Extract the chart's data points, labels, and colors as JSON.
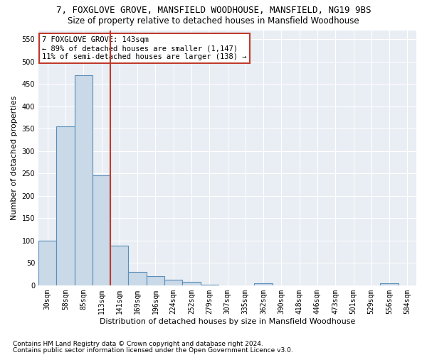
{
  "title1": "7, FOXGLOVE GROVE, MANSFIELD WOODHOUSE, MANSFIELD, NG19 9BS",
  "title2": "Size of property relative to detached houses in Mansfield Woodhouse",
  "xlabel": "Distribution of detached houses by size in Mansfield Woodhouse",
  "ylabel": "Number of detached properties",
  "footnote1": "Contains HM Land Registry data © Crown copyright and database right 2024.",
  "footnote2": "Contains public sector information licensed under the Open Government Licence v3.0.",
  "categories": [
    "30sqm",
    "58sqm",
    "85sqm",
    "113sqm",
    "141sqm",
    "169sqm",
    "196sqm",
    "224sqm",
    "252sqm",
    "279sqm",
    "307sqm",
    "335sqm",
    "362sqm",
    "390sqm",
    "418sqm",
    "446sqm",
    "473sqm",
    "501sqm",
    "529sqm",
    "556sqm",
    "584sqm"
  ],
  "values": [
    100,
    355,
    470,
    245,
    88,
    30,
    20,
    13,
    8,
    2,
    0,
    0,
    5,
    0,
    0,
    0,
    0,
    0,
    0,
    5,
    0
  ],
  "bar_color": "#c9d9e8",
  "bar_edge_color": "#5b8db8",
  "vline_x_index": 3,
  "vline_color": "#c0392b",
  "annotation_text": "7 FOXGLOVE GROVE: 143sqm\n← 89% of detached houses are smaller (1,147)\n11% of semi-detached houses are larger (138) →",
  "annotation_box_color": "white",
  "annotation_box_edge": "#c0392b",
  "ylim": [
    0,
    570
  ],
  "yticks": [
    0,
    50,
    100,
    150,
    200,
    250,
    300,
    350,
    400,
    450,
    500,
    550
  ],
  "bg_color": "#e8eef4",
  "grid_color": "#ffffff",
  "title1_fontsize": 9,
  "title2_fontsize": 8.5,
  "axis_label_fontsize": 8,
  "tick_fontsize": 7,
  "annotation_fontsize": 7.5,
  "footnote_fontsize": 6.5
}
